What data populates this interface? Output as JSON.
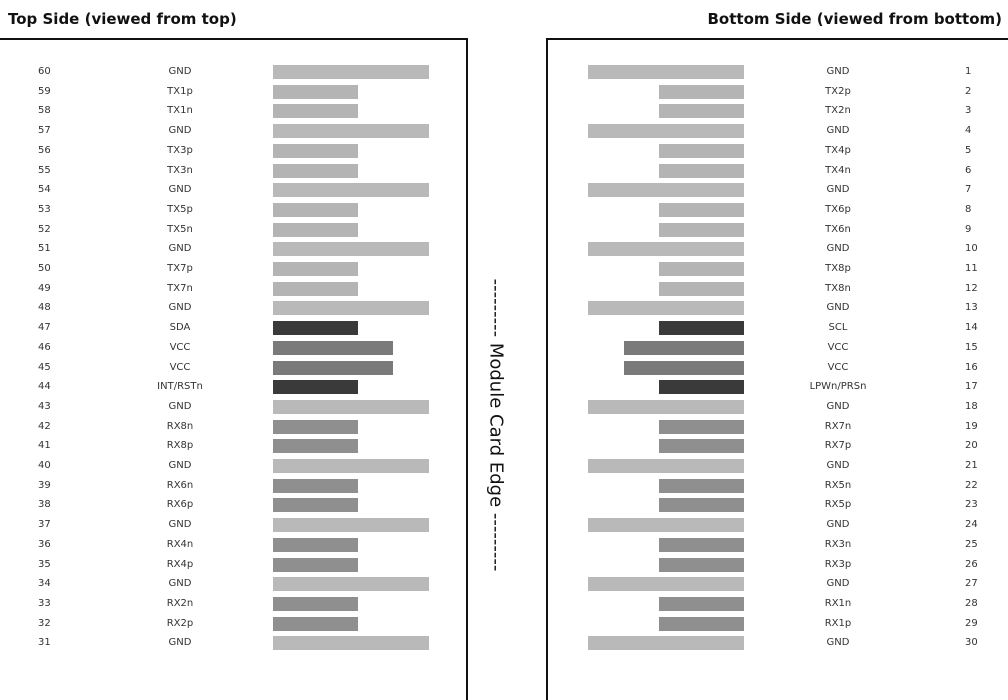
{
  "titles": {
    "top": "Top Side (viewed from top)",
    "bottom": "Bottom Side (viewed from bottom)"
  },
  "edge_label": "--------- Module Card Edge ---------",
  "colors": {
    "gnd": "#b9b9b9",
    "tx": "#b4b4b4",
    "rx": "#8f8f8f",
    "control": "#3a3a3a",
    "power": "#7a7a7a"
  },
  "top_side": [
    {
      "pin": "60",
      "signal": "GND",
      "type": "gnd"
    },
    {
      "pin": "59",
      "signal": "TX1p",
      "type": "tx"
    },
    {
      "pin": "58",
      "signal": "TX1n",
      "type": "tx"
    },
    {
      "pin": "57",
      "signal": "GND",
      "type": "gnd"
    },
    {
      "pin": "56",
      "signal": "TX3p",
      "type": "tx"
    },
    {
      "pin": "55",
      "signal": "TX3n",
      "type": "tx"
    },
    {
      "pin": "54",
      "signal": "GND",
      "type": "gnd"
    },
    {
      "pin": "53",
      "signal": "TX5p",
      "type": "tx"
    },
    {
      "pin": "52",
      "signal": "TX5n",
      "type": "tx"
    },
    {
      "pin": "51",
      "signal": "GND",
      "type": "gnd"
    },
    {
      "pin": "50",
      "signal": "TX7p",
      "type": "tx"
    },
    {
      "pin": "49",
      "signal": "TX7n",
      "type": "tx"
    },
    {
      "pin": "48",
      "signal": "GND",
      "type": "gnd"
    },
    {
      "pin": "47",
      "signal": "SDA",
      "type": "control"
    },
    {
      "pin": "46",
      "signal": "VCC",
      "type": "power"
    },
    {
      "pin": "45",
      "signal": "VCC",
      "type": "power"
    },
    {
      "pin": "44",
      "signal": "INT/RSTn",
      "type": "control"
    },
    {
      "pin": "43",
      "signal": "GND",
      "type": "gnd"
    },
    {
      "pin": "42",
      "signal": "RX8n",
      "type": "rx"
    },
    {
      "pin": "41",
      "signal": "RX8p",
      "type": "rx"
    },
    {
      "pin": "40",
      "signal": "GND",
      "type": "gnd"
    },
    {
      "pin": "39",
      "signal": "RX6n",
      "type": "rx"
    },
    {
      "pin": "38",
      "signal": "RX6p",
      "type": "rx"
    },
    {
      "pin": "37",
      "signal": "GND",
      "type": "gnd"
    },
    {
      "pin": "36",
      "signal": "RX4n",
      "type": "rx"
    },
    {
      "pin": "35",
      "signal": "RX4p",
      "type": "rx"
    },
    {
      "pin": "34",
      "signal": "GND",
      "type": "gnd"
    },
    {
      "pin": "33",
      "signal": "RX2n",
      "type": "rx"
    },
    {
      "pin": "32",
      "signal": "RX2p",
      "type": "rx"
    },
    {
      "pin": "31",
      "signal": "GND",
      "type": "gnd"
    }
  ],
  "bottom_side": [
    {
      "pin": "1",
      "signal": "GND",
      "type": "gnd"
    },
    {
      "pin": "2",
      "signal": "TX2p",
      "type": "tx"
    },
    {
      "pin": "3",
      "signal": "TX2n",
      "type": "tx"
    },
    {
      "pin": "4",
      "signal": "GND",
      "type": "gnd"
    },
    {
      "pin": "5",
      "signal": "TX4p",
      "type": "tx"
    },
    {
      "pin": "6",
      "signal": "TX4n",
      "type": "tx"
    },
    {
      "pin": "7",
      "signal": "GND",
      "type": "gnd"
    },
    {
      "pin": "8",
      "signal": "TX6p",
      "type": "tx"
    },
    {
      "pin": "9",
      "signal": "TX6n",
      "type": "tx"
    },
    {
      "pin": "10",
      "signal": "GND",
      "type": "gnd"
    },
    {
      "pin": "11",
      "signal": "TX8p",
      "type": "tx"
    },
    {
      "pin": "12",
      "signal": "TX8n",
      "type": "tx"
    },
    {
      "pin": "13",
      "signal": "GND",
      "type": "gnd"
    },
    {
      "pin": "14",
      "signal": "SCL",
      "type": "control"
    },
    {
      "pin": "15",
      "signal": "VCC",
      "type": "power"
    },
    {
      "pin": "16",
      "signal": "VCC",
      "type": "power"
    },
    {
      "pin": "17",
      "signal": "LPWn/PRSn",
      "type": "control"
    },
    {
      "pin": "18",
      "signal": "GND",
      "type": "gnd"
    },
    {
      "pin": "19",
      "signal": "RX7n",
      "type": "rx"
    },
    {
      "pin": "20",
      "signal": "RX7p",
      "type": "rx"
    },
    {
      "pin": "21",
      "signal": "GND",
      "type": "gnd"
    },
    {
      "pin": "22",
      "signal": "RX5n",
      "type": "rx"
    },
    {
      "pin": "23",
      "signal": "RX5p",
      "type": "rx"
    },
    {
      "pin": "24",
      "signal": "GND",
      "type": "gnd"
    },
    {
      "pin": "25",
      "signal": "RX3n",
      "type": "rx"
    },
    {
      "pin": "26",
      "signal": "RX3p",
      "type": "rx"
    },
    {
      "pin": "27",
      "signal": "GND",
      "type": "gnd"
    },
    {
      "pin": "28",
      "signal": "RX1n",
      "type": "rx"
    },
    {
      "pin": "29",
      "signal": "RX1p",
      "type": "rx"
    },
    {
      "pin": "30",
      "signal": "GND",
      "type": "gnd"
    }
  ]
}
